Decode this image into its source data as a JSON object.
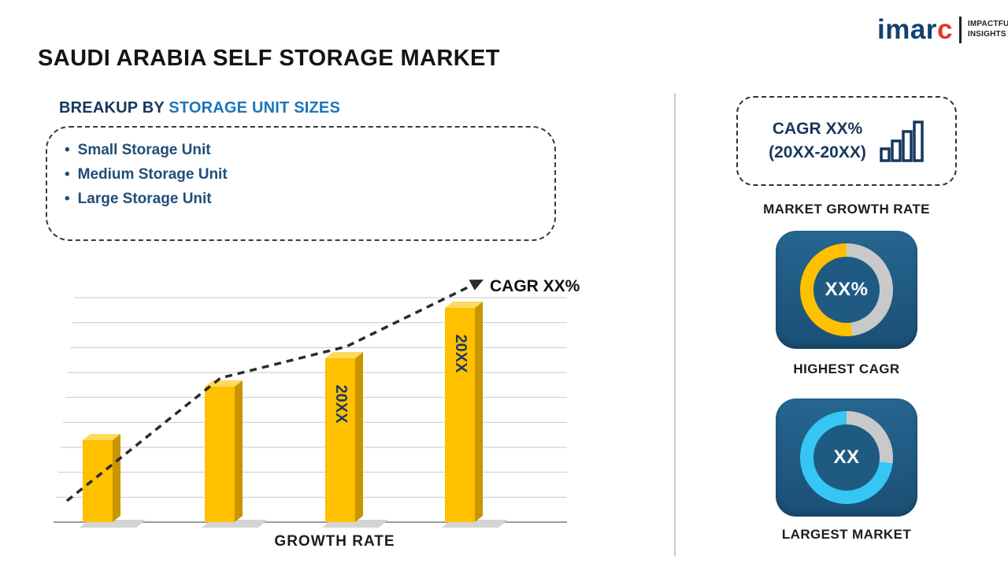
{
  "logo": {
    "brand_main": "imar",
    "brand_accent": "c",
    "tagline_line1": "IMPACTFUL",
    "tagline_line2": "INSIGHTS"
  },
  "title": "SAUDI ARABIA SELF STORAGE MARKET",
  "breakup": {
    "heading_prefix": "BREAKUP BY ",
    "heading_highlight": "STORAGE UNIT SIZES",
    "bullet": "•",
    "items": [
      "Small Storage Unit",
      "Medium Storage Unit",
      "Large Storage Unit"
    ]
  },
  "chart_data": {
    "type": "bar",
    "values": [
      26,
      43,
      52,
      68
    ],
    "value_note": "relative bar heights; numeric axis not labeled in source",
    "bar_labels": [
      "",
      "",
      "20XX",
      "20XX"
    ],
    "trend_label": "CAGR XX%",
    "xlabel": "GROWTH RATE",
    "ylabel": "",
    "ylim": [
      0,
      80
    ],
    "grid": true,
    "bar_color": "#FFC000",
    "trend": "dashed ascending arrow over bars",
    "legend": "none"
  },
  "sidebar": {
    "growth_card": {
      "line1": "CAGR XX%",
      "line2": "(20XX-20XX)",
      "caption": "MARKET GROWTH RATE"
    },
    "highest_cagr": {
      "value": "XX%",
      "caption": "HIGHEST CAGR",
      "share_pct": 52
    },
    "largest_market": {
      "value": "XX",
      "caption": "LARGEST MARKET",
      "share_pct": 73
    }
  },
  "colors": {
    "navy_text": "#17375E",
    "list_text": "#1F4E79",
    "heading_blue": "#1B75BB",
    "gold": "#FFC000",
    "cyan": "#35C6F4",
    "tile_navy": "#1F5C84",
    "donut_gray": "#C9C9C9",
    "bar_side": "#C89600",
    "bar_top": "#FFD95C"
  }
}
